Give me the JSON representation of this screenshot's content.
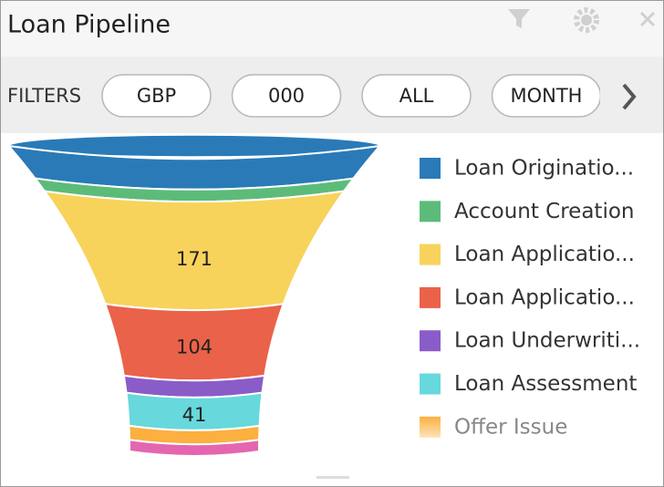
{
  "header": {
    "title": "Loan Pipeline"
  },
  "filters": {
    "label": "FILTERS",
    "chips": [
      "GBP",
      "000",
      "ALL",
      "MONTH"
    ]
  },
  "chart_data": {
    "type": "funnel",
    "categories": [
      "Loan Originatio...",
      "Account Creation",
      "Loan Applicatio...",
      "Loan Applicatio...",
      "Loan Underwriti...",
      "Loan Assessment",
      "Offer Issue",
      null
    ],
    "values": [
      40,
      8,
      171,
      104,
      15,
      41,
      10,
      6
    ],
    "value_labels": [
      null,
      null,
      "171",
      "104",
      null,
      "41",
      null,
      null
    ],
    "colors": [
      "#2a7ab8",
      "#5dbb7a",
      "#f7d35c",
      "#ea6249",
      "#8a5cc8",
      "#67d8dc",
      "#fbb040",
      "#e466b0"
    ],
    "legend": "right"
  }
}
